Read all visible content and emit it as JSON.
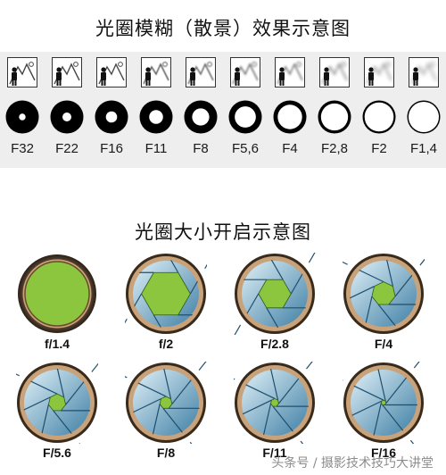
{
  "titles": {
    "blur": "光圈模糊（散景）效果示意图",
    "size": "光圈大小开启示意图"
  },
  "blur_strip": [
    {
      "label": "F32",
      "opening": 0.2,
      "bg_blur": 0.0
    },
    {
      "label": "F22",
      "opening": 0.27,
      "bg_blur": 0.05
    },
    {
      "label": "F16",
      "opening": 0.34,
      "bg_blur": 0.1
    },
    {
      "label": "F11",
      "opening": 0.42,
      "bg_blur": 0.2
    },
    {
      "label": "F8",
      "opening": 0.52,
      "bg_blur": 0.32
    },
    {
      "label": "F5,6",
      "opening": 0.64,
      "bg_blur": 0.45
    },
    {
      "label": "F4",
      "opening": 0.74,
      "bg_blur": 0.58
    },
    {
      "label": "F2,8",
      "opening": 0.82,
      "bg_blur": 0.72
    },
    {
      "label": "F2",
      "opening": 0.88,
      "bg_blur": 0.85
    },
    {
      "label": "F1,4",
      "opening": 0.92,
      "bg_blur": 1.0
    }
  ],
  "apertures": [
    {
      "label": "f/1.4",
      "opening": 1.0,
      "blades": 0
    },
    {
      "label": "f/2",
      "opening": 0.78,
      "blades": 6
    },
    {
      "label": "F/2.8",
      "opening": 0.52,
      "blades": 6
    },
    {
      "label": "F/4",
      "opening": 0.38,
      "blades": 7
    },
    {
      "label": "F/5.6",
      "opening": 0.28,
      "blades": 7
    },
    {
      "label": "F/8",
      "opening": 0.2,
      "blades": 7
    },
    {
      "label": "F/11",
      "opening": 0.13,
      "blades": 7
    },
    {
      "label": "F/16",
      "opening": 0.08,
      "blades": 7
    }
  ],
  "colors": {
    "opening": "#8cc63f",
    "ring": "#4a3a2a",
    "blade_light": "#dff0f7",
    "blade_dark": "#3f7fa5",
    "disc": "#000000"
  },
  "watermark": "头条号 / 摄影技术技巧大讲堂"
}
